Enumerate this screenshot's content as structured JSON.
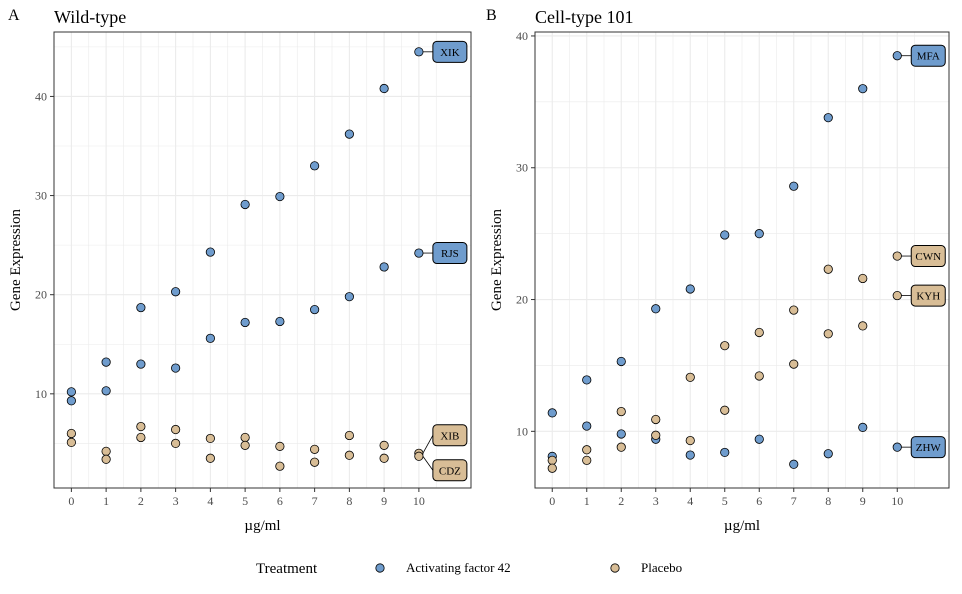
{
  "colors": {
    "activating": "#6f9ccd",
    "placebo": "#d8bd96",
    "grid": "#ebebeb",
    "axis": "#333333",
    "tick_text": "#4d4d4d"
  },
  "legend": {
    "title": "Treatment",
    "items": [
      {
        "label": "Activating factor 42",
        "color": "#6f9ccd"
      },
      {
        "label": "Placebo",
        "color": "#d8bd96"
      }
    ]
  },
  "chart_data": [
    {
      "type": "scatter",
      "panel_tag": "A",
      "title": "Wild-type",
      "xlabel": "µg/ml",
      "ylabel": "Gene Expression",
      "xlim": [
        -0.5,
        11.5
      ],
      "ylim": [
        0.5,
        46.5
      ],
      "xticks": [
        0,
        1,
        2,
        3,
        4,
        5,
        6,
        7,
        8,
        9,
        10
      ],
      "yticks": [
        10,
        20,
        30,
        40
      ],
      "grid": true,
      "series": [
        {
          "name": "Activating factor 42",
          "color": "#6f9ccd",
          "points": [
            [
              0,
              10.2
            ],
            [
              1,
              13.2
            ],
            [
              2,
              18.7
            ],
            [
              3,
              20.3
            ],
            [
              4,
              24.3
            ],
            [
              5,
              29.1
            ],
            [
              6,
              29.9
            ],
            [
              7,
              33.0
            ],
            [
              8,
              36.2
            ],
            [
              9,
              40.8
            ],
            [
              10,
              44.5
            ],
            [
              0,
              9.3
            ],
            [
              1,
              10.3
            ],
            [
              2,
              13.0
            ],
            [
              3,
              12.6
            ],
            [
              4,
              15.6
            ],
            [
              5,
              17.2
            ],
            [
              6,
              17.3
            ],
            [
              7,
              18.5
            ],
            [
              8,
              19.8
            ],
            [
              9,
              22.8
            ],
            [
              10,
              24.2
            ]
          ]
        },
        {
          "name": "Placebo",
          "color": "#d8bd96",
          "points": [
            [
              0,
              6.0
            ],
            [
              1,
              4.2
            ],
            [
              2,
              6.7
            ],
            [
              3,
              6.4
            ],
            [
              4,
              5.5
            ],
            [
              5,
              5.6
            ],
            [
              6,
              4.7
            ],
            [
              7,
              4.4
            ],
            [
              8,
              5.8
            ],
            [
              9,
              4.8
            ],
            [
              10,
              4.0
            ],
            [
              0,
              5.1
            ],
            [
              1,
              3.4
            ],
            [
              2,
              5.6
            ],
            [
              3,
              5.0
            ],
            [
              4,
              3.5
            ],
            [
              5,
              4.8
            ],
            [
              6,
              2.7
            ],
            [
              7,
              3.1
            ],
            [
              8,
              3.8
            ],
            [
              9,
              3.5
            ],
            [
              10,
              3.7
            ]
          ]
        }
      ],
      "annotations": [
        {
          "text": "XIK",
          "x": 10,
          "y": 44.5,
          "fill": "#6f9ccd",
          "dy": 0
        },
        {
          "text": "RJS",
          "x": 10,
          "y": 24.2,
          "fill": "#6f9ccd",
          "dy": 0
        },
        {
          "text": "XIB",
          "x": 10,
          "y": 4.0,
          "fill": "#d8bd96",
          "dy": -18
        },
        {
          "text": "CDZ",
          "x": 10,
          "y": 3.7,
          "fill": "#d8bd96",
          "dy": 14
        }
      ]
    },
    {
      "type": "scatter",
      "panel_tag": "B",
      "title": "Cell-type 101",
      "xlabel": "µg/ml",
      "ylabel": "Gene Expression",
      "xlim": [
        -0.5,
        11.5
      ],
      "ylim": [
        5.7,
        40.3
      ],
      "xticks": [
        0,
        1,
        2,
        3,
        4,
        5,
        6,
        7,
        8,
        9,
        10
      ],
      "yticks": [
        10,
        20,
        30,
        40
      ],
      "grid": true,
      "series": [
        {
          "name": "Activating factor 42",
          "color": "#6f9ccd",
          "points": [
            [
              0,
              11.4
            ],
            [
              1,
              13.9
            ],
            [
              2,
              15.3
            ],
            [
              3,
              19.3
            ],
            [
              4,
              20.8
            ],
            [
              5,
              24.9
            ],
            [
              6,
              25.0
            ],
            [
              7,
              28.6
            ],
            [
              8,
              33.8
            ],
            [
              9,
              36.0
            ],
            [
              10,
              38.5
            ],
            [
              0,
              8.1
            ],
            [
              1,
              10.4
            ],
            [
              2,
              9.8
            ],
            [
              3,
              9.4
            ],
            [
              4,
              8.2
            ],
            [
              5,
              8.4
            ],
            [
              6,
              9.4
            ],
            [
              7,
              7.5
            ],
            [
              8,
              8.3
            ],
            [
              9,
              10.3
            ],
            [
              10,
              8.8
            ]
          ]
        },
        {
          "name": "Placebo",
          "color": "#d8bd96",
          "points": [
            [
              0,
              7.8
            ],
            [
              1,
              8.6
            ],
            [
              2,
              11.5
            ],
            [
              3,
              10.9
            ],
            [
              4,
              14.1
            ],
            [
              5,
              16.5
            ],
            [
              6,
              17.5
            ],
            [
              7,
              19.2
            ],
            [
              8,
              22.3
            ],
            [
              9,
              21.6
            ],
            [
              10,
              23.3
            ],
            [
              0,
              7.2
            ],
            [
              1,
              7.8
            ],
            [
              2,
              8.8
            ],
            [
              3,
              9.7
            ],
            [
              4,
              9.3
            ],
            [
              5,
              11.6
            ],
            [
              6,
              14.2
            ],
            [
              7,
              15.1
            ],
            [
              8,
              17.4
            ],
            [
              9,
              18.0
            ],
            [
              10,
              20.3
            ]
          ]
        }
      ],
      "annotations": [
        {
          "text": "MFA",
          "x": 10,
          "y": 38.5,
          "fill": "#6f9ccd",
          "dy": 0
        },
        {
          "text": "CWN",
          "x": 10,
          "y": 23.3,
          "fill": "#d8bd96",
          "dy": 0
        },
        {
          "text": "KYH",
          "x": 10,
          "y": 20.3,
          "fill": "#d8bd96",
          "dy": 0
        },
        {
          "text": "ZHW",
          "x": 10,
          "y": 8.8,
          "fill": "#6f9ccd",
          "dy": 0
        }
      ]
    }
  ]
}
